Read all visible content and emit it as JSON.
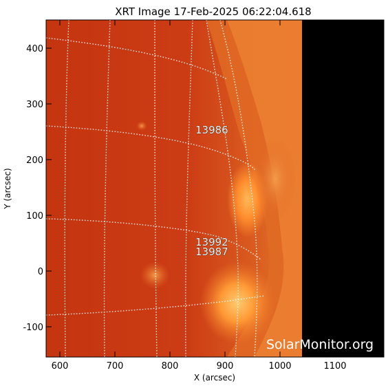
{
  "title": "XRT Image 17-Feb-2025 06:22:04.618",
  "x_axis": {
    "label": "X (arcsec)",
    "ticks": [
      "600",
      "700",
      "800",
      "900",
      "1000",
      "1100"
    ]
  },
  "y_axis": {
    "label": "Y (arcsec)",
    "ticks": [
      "400",
      "300",
      "200",
      "100",
      "0",
      "-100"
    ]
  },
  "active_regions": [
    "13986",
    "13992",
    "13987"
  ],
  "watermark": "SolarMonitor.org",
  "colors": {
    "disk": "#c83a12",
    "limb_glow": "#ff9a30",
    "off_detector": "#000000",
    "grid": "#ffffff"
  }
}
